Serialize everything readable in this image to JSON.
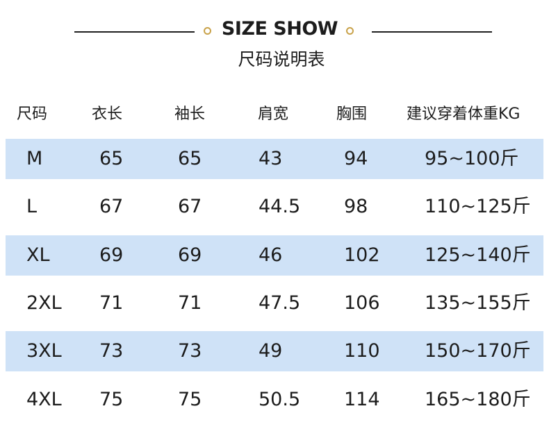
{
  "header": {
    "title": "SIZE SHOW",
    "subtitle": "尺码说明表",
    "accent_color": "#c9a24a",
    "line_color": "#1f1f1f"
  },
  "table": {
    "row_shade_color": "#cfe2f7",
    "columns": [
      "尺码",
      "衣长",
      "袖长",
      "肩宽",
      "胸围",
      "建议穿着体重KG"
    ],
    "rows": [
      {
        "size": "M",
        "length": "65",
        "sleeve": "65",
        "shoulder": "43",
        "chest": "94",
        "weight": "95~100斤",
        "shaded": true
      },
      {
        "size": "L",
        "length": "67",
        "sleeve": "67",
        "shoulder": "44.5",
        "chest": "98",
        "weight": "110~125斤",
        "shaded": false
      },
      {
        "size": "XL",
        "length": "69",
        "sleeve": "69",
        "shoulder": "46",
        "chest": "102",
        "weight": "125~140斤",
        "shaded": true
      },
      {
        "size": "2XL",
        "length": "71",
        "sleeve": "71",
        "shoulder": "47.5",
        "chest": "106",
        "weight": "135~155斤",
        "shaded": false
      },
      {
        "size": "3XL",
        "length": "73",
        "sleeve": "73",
        "shoulder": "49",
        "chest": "110",
        "weight": "150~170斤",
        "shaded": true
      },
      {
        "size": "4XL",
        "length": "75",
        "sleeve": "75",
        "shoulder": "50.5",
        "chest": "114",
        "weight": "165~180斤",
        "shaded": false
      }
    ]
  }
}
